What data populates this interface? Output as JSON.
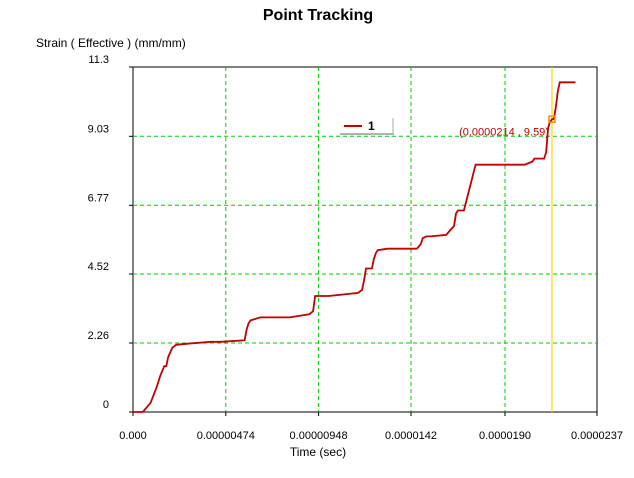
{
  "chart_data": {
    "type": "line",
    "title": "Point Tracking",
    "ylabel": "Strain ( Effective )  (mm/mm)",
    "xlabel": "Time (sec)",
    "x_ticks": [
      "0.000",
      "0.00000474",
      "0.00000948",
      "0.0000142",
      "0.0000190",
      "0.0000237"
    ],
    "x_tick_values": [
      0,
      4.74e-06,
      9.48e-06,
      1.42e-05,
      1.9e-05,
      2.37e-05
    ],
    "y_ticks": [
      "0",
      "2.26",
      "4.52",
      "6.77",
      "9.03",
      "11.3"
    ],
    "y_tick_values": [
      0,
      2.26,
      4.52,
      6.77,
      9.03,
      11.3
    ],
    "xlim": [
      0,
      2.37e-05
    ],
    "ylim": [
      0,
      11.3
    ],
    "grid": true,
    "legend_position": "top-center",
    "series": [
      {
        "name": "1",
        "color": "#c00000",
        "x": [
          0,
          5e-07,
          9e-07,
          1.2e-06,
          1.4e-06,
          1.6e-06,
          1.7e-06,
          1.8e-06,
          2e-06,
          2.2e-06,
          3e-06,
          4e-06,
          4.5e-06,
          5.7e-06,
          5.8e-06,
          5.9e-06,
          6e-06,
          6.5e-06,
          8e-06,
          9e-06,
          9.2e-06,
          9.3e-06,
          1e-05,
          1.15e-05,
          1.17e-05,
          1.18e-05,
          1.19e-05,
          1.22e-05,
          1.23e-05,
          1.24e-05,
          1.25e-05,
          1.3e-05,
          1.45e-05,
          1.47e-05,
          1.48e-05,
          1.5e-05,
          1.52e-05,
          1.6e-05,
          1.64e-05,
          1.65e-05,
          1.66e-05,
          1.69e-05,
          1.73e-05,
          1.75e-05,
          1.76e-05,
          1.77e-05,
          2e-05,
          2.04e-05,
          2.05e-05,
          2.1e-05,
          2.11e-05,
          2.12e-05,
          2.13e-05,
          2.14e-05,
          2.15e-05,
          2.16e-05,
          2.17e-05,
          2.18e-05,
          2.19e-05,
          2.26e-05
        ],
        "y": [
          0,
          0,
          0.3,
          0.8,
          1.2,
          1.5,
          1.5,
          1.8,
          2.1,
          2.2,
          2.25,
          2.3,
          2.3,
          2.35,
          2.7,
          2.9,
          3.0,
          3.1,
          3.1,
          3.2,
          3.3,
          3.8,
          3.8,
          3.9,
          4.0,
          4.3,
          4.7,
          4.7,
          5.0,
          5.2,
          5.3,
          5.35,
          5.35,
          5.5,
          5.7,
          5.75,
          5.75,
          5.8,
          6.1,
          6.5,
          6.6,
          6.6,
          7.6,
          8.1,
          8.1,
          8.1,
          8.1,
          8.2,
          8.3,
          8.3,
          8.5,
          9.3,
          9.5,
          9.59,
          9.6,
          10.0,
          10.5,
          10.8,
          10.8,
          10.8
        ]
      }
    ],
    "tracker": {
      "x": 2.14e-05,
      "y": 9.59,
      "color": "#ffd700"
    },
    "annotation": "(0.0000214 , 9.59)"
  }
}
